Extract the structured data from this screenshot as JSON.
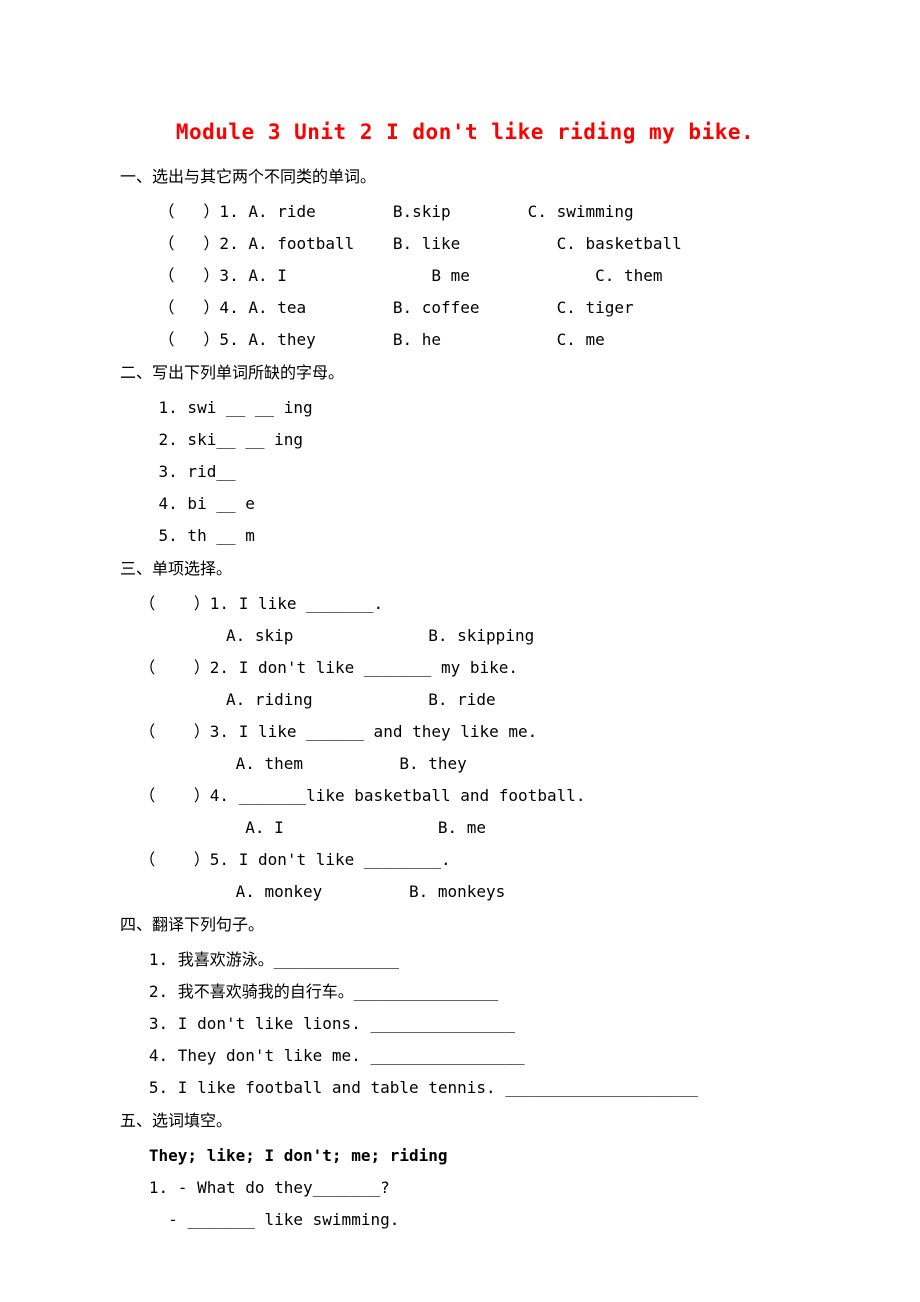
{
  "title": "Module 3 Unit 2  I don't like riding my bike.",
  "section1": {
    "heading": "一、选出与其它两个不同类的单词。",
    "items": [
      "    （   ）1. A. ride        B.skip        C. swimming",
      "    （   ）2. A. football    B. like          C. basketball",
      "    （   ）3. A. I               B me             C. them",
      "    （   ）4. A. tea         B. coffee        C. tiger",
      "    （   ）5. A. they        B. he            C. me"
    ]
  },
  "section2": {
    "heading": "二、写出下列单词所缺的字母。",
    "items": [
      "    1. swi __ __ ing",
      "    2. ski__ __ ing",
      "    3. rid__",
      "    4. bi __ e",
      "    5. th __ m"
    ]
  },
  "section3": {
    "heading": "三、单项选择。",
    "items": [
      "  （    ）1. I like _______.",
      "           A. skip              B. skipping",
      "  （    ）2. I don't like _______ my bike.",
      "           A. riding            B. ride",
      "  （    ）3. I like ______ and they like me.",
      "            A. them          B. they",
      "  （    ）4. _______like basketball and football.",
      "             A. I                B. me",
      "  （    ）5. I don't like ________.",
      "            A. monkey         B. monkeys"
    ]
  },
  "section4": {
    "heading": "四、翻译下列句子。",
    "items": [
      "   1. 我喜欢游泳。_____________",
      "   2. 我不喜欢骑我的自行车。_______________",
      "   3. I don't like lions. _______________",
      "   4. They don't like me. ________________",
      "   5. I like football and table tennis. ____________________"
    ]
  },
  "section5": {
    "heading": "五、选词填空。",
    "wordbank": "   They; like; I don't; me; riding",
    "items": [
      "   1. - What do they_______?",
      "     - _______ like swimming."
    ]
  }
}
